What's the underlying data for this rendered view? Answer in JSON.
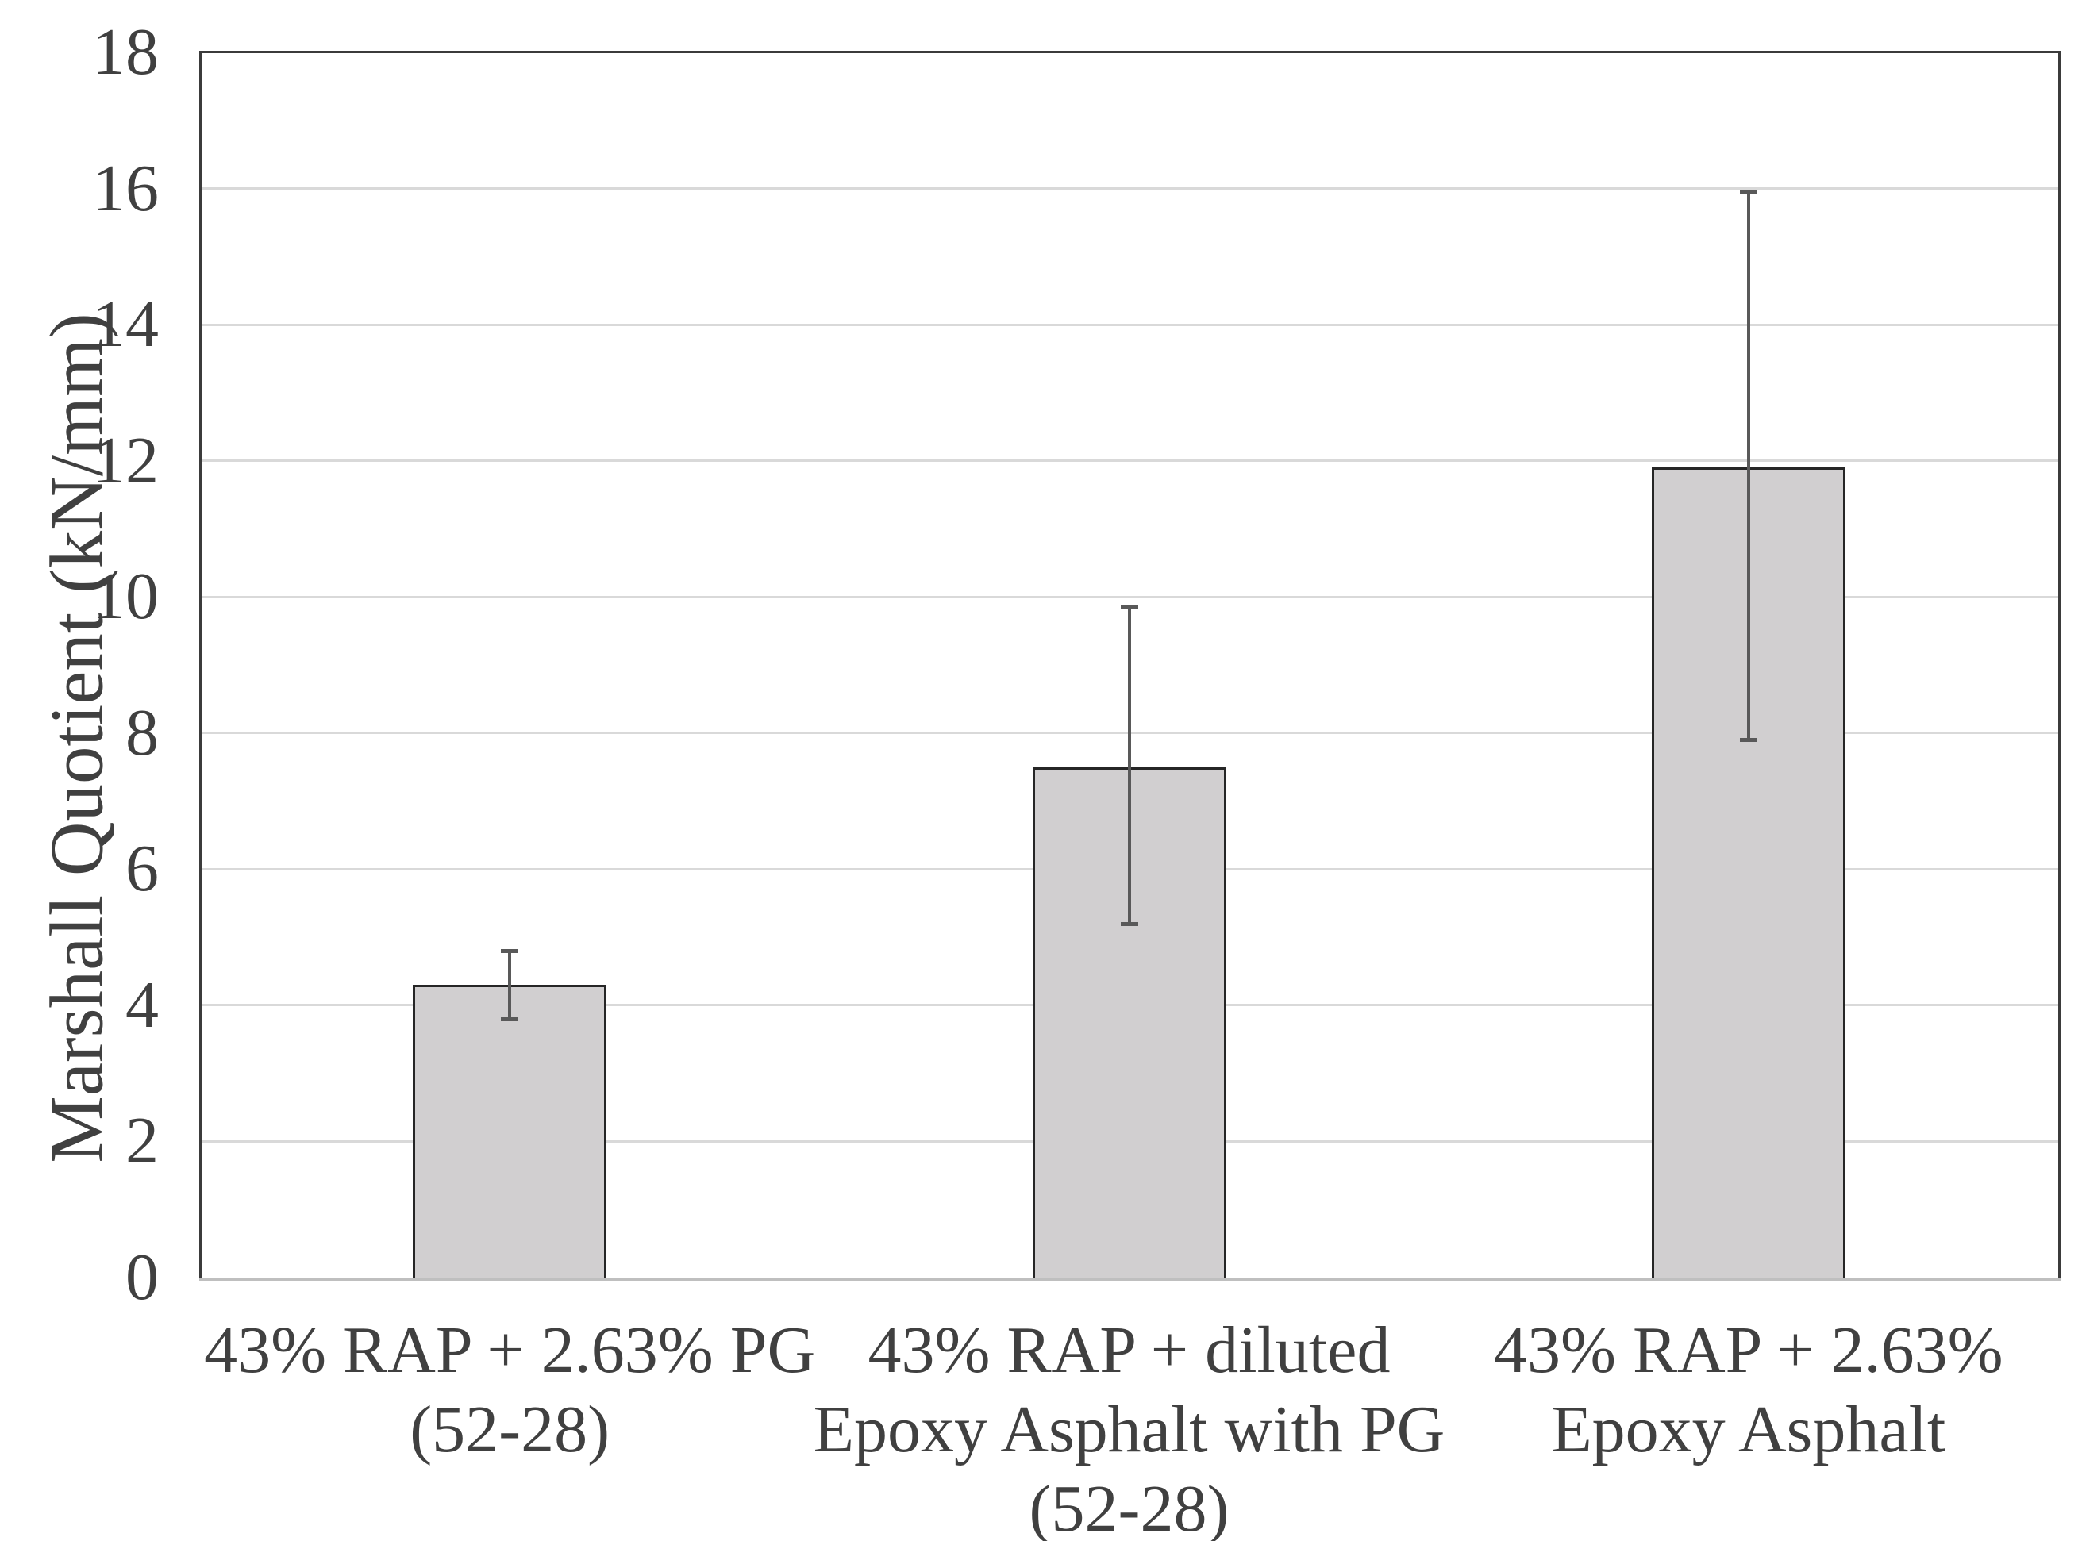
{
  "figure": {
    "background": "#ffffff"
  },
  "chart_data": {
    "type": "bar",
    "title": "",
    "xlabel": "",
    "ylabel": "Marshall Quotient (kN/mm)",
    "categories": [
      "43% RAP + 2.63% PG (52-28)",
      "43% RAP + diluted Epoxy Asphalt with PG (52-28)",
      "43% RAP + 2.63% Epoxy Asphalt"
    ],
    "category_lines": [
      [
        "43% RAP + 2.63% PG",
        "(52-28)"
      ],
      [
        "43% RAP + diluted",
        "Epoxy Asphalt with PG",
        "(52-28)"
      ],
      [
        "43% RAP + 2.63%",
        "Epoxy Asphalt"
      ]
    ],
    "values": [
      4.3,
      7.5,
      11.9
    ],
    "error_bars": {
      "low": [
        3.8,
        5.2,
        7.9
      ],
      "high": [
        4.8,
        9.85,
        15.95
      ]
    },
    "ylim": [
      0,
      18
    ],
    "ytick_step": 2,
    "yticks": [
      0,
      2,
      4,
      6,
      8,
      10,
      12,
      14,
      16,
      18
    ],
    "grid": true,
    "legend": false,
    "bar_fill_color": "#D1CFD0",
    "bar_border_color": "#262626",
    "error_bar_color": "#595959",
    "gridline_color": "#D9D9D9",
    "bottom_axis_color": "#BFBFBF",
    "plot_border_color": "#3B3B3B",
    "text_color": "#404040"
  }
}
